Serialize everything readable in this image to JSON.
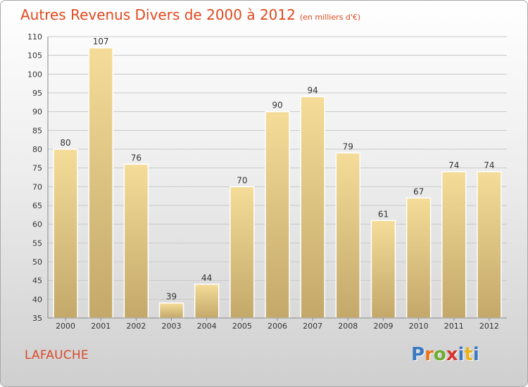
{
  "title": "Autres Revenus Divers de 2000 à 2012",
  "title_unit": "(en milliers d'€)",
  "location": "LAFAUCHE",
  "brand": {
    "text": "Proxiti",
    "letters": [
      "P",
      "r",
      "o",
      "x",
      "i",
      "t",
      "i"
    ],
    "colors": [
      "#3a78c2",
      "#e8741e",
      "#6cab2e",
      "#d6332e",
      "#3a78c2",
      "#e8b21e",
      "#3a78c2"
    ]
  },
  "colors": {
    "title": "#e0491e",
    "bar_top": "#f5dc98",
    "bar_bottom": "#c3a86a",
    "grid": "#c9c9c9"
  },
  "chart_data": {
    "type": "bar",
    "title": "Autres Revenus Divers de 2000 à 2012",
    "xlabel": "",
    "ylabel": "",
    "categories": [
      "2000",
      "2001",
      "2002",
      "2003",
      "2004",
      "2005",
      "2006",
      "2007",
      "2008",
      "2009",
      "2010",
      "2011",
      "2012"
    ],
    "values": [
      80,
      107,
      76,
      39,
      44,
      70,
      90,
      94,
      79,
      61,
      67,
      74,
      74
    ],
    "ylim": [
      35,
      110
    ],
    "yticks": [
      35,
      40,
      45,
      50,
      55,
      60,
      65,
      70,
      75,
      80,
      85,
      90,
      95,
      100,
      105,
      110
    ],
    "grid": true,
    "data_labels": true
  }
}
